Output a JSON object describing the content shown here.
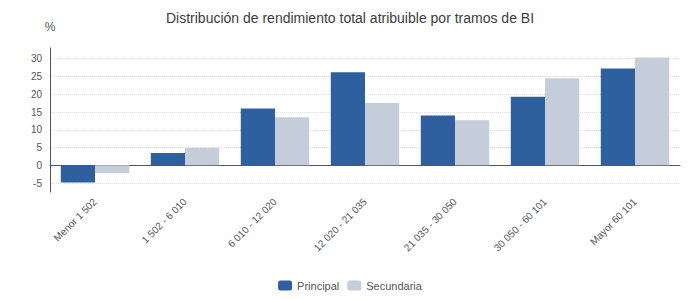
{
  "chart_data": {
    "type": "bar",
    "title": "Distribución de rendimiento total atribuible por tramos de BI",
    "categories": [
      "Menor 1 502",
      "1 502 - 6 010",
      "6 010 - 12 020",
      "12 020 - 21 035",
      "21 035 - 30 050",
      "30 050 - 60 101",
      "Mayor 60 101"
    ],
    "series": [
      {
        "name": "Principal",
        "color": "#2E5F9E",
        "values": [
          -4.8,
          3.5,
          16.0,
          26.2,
          14.0,
          19.3,
          27.2
        ]
      },
      {
        "name": "Secundaria",
        "color": "#C5CCDA",
        "values": [
          -2.2,
          4.9,
          13.5,
          17.5,
          12.7,
          24.5,
          30.3
        ]
      }
    ],
    "ylabel": "%",
    "ylim": [
      -7.5,
      33
    ],
    "yticks": [
      -5,
      0,
      5,
      10,
      15,
      20,
      25,
      30
    ],
    "grid": true,
    "legend": "bottom"
  }
}
